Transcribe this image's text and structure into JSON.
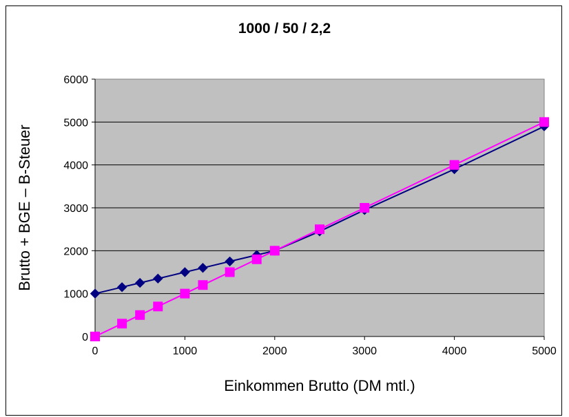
{
  "chart_data": {
    "type": "line",
    "title": "1000 / 50 / 2,2",
    "xlabel": "Einkommen Brutto (DM mtl.)",
    "ylabel": "Brutto + BGE – B-Steuer",
    "xlim": [
      0,
      5000
    ],
    "ylim": [
      0,
      6000
    ],
    "xticks": [
      0,
      1000,
      2000,
      3000,
      4000,
      5000
    ],
    "yticks": [
      0,
      1000,
      2000,
      3000,
      4000,
      5000,
      6000
    ],
    "grid": true,
    "plot_background": "#c0c0c0",
    "series": [
      {
        "color": "#000080",
        "marker": "diamond",
        "points": [
          [
            0,
            1000
          ],
          [
            300,
            1150
          ],
          [
            500,
            1250
          ],
          [
            700,
            1350
          ],
          [
            1000,
            1500
          ],
          [
            1200,
            1600
          ],
          [
            1500,
            1750
          ],
          [
            1800,
            1900
          ],
          [
            2000,
            2000
          ],
          [
            2500,
            2450
          ],
          [
            3000,
            2950
          ],
          [
            4000,
            3900
          ],
          [
            5000,
            4900
          ]
        ]
      },
      {
        "color": "#ff00ff",
        "marker": "square",
        "points": [
          [
            0,
            0
          ],
          [
            300,
            300
          ],
          [
            500,
            500
          ],
          [
            700,
            700
          ],
          [
            1000,
            1000
          ],
          [
            1200,
            1200
          ],
          [
            1500,
            1500
          ],
          [
            1800,
            1800
          ],
          [
            2000,
            2000
          ],
          [
            2500,
            2500
          ],
          [
            3000,
            3000
          ],
          [
            4000,
            4000
          ],
          [
            5000,
            5000
          ]
        ]
      }
    ]
  }
}
